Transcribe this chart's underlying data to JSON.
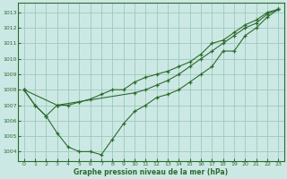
{
  "title": "Graphe pression niveau de la mer (hPa)",
  "background_color": "#cce8e4",
  "grid_color": "#99ccbb",
  "line_color": "#2d6b2d",
  "xlim": [
    -0.5,
    23.5
  ],
  "ylim": [
    1003.4,
    1013.6
  ],
  "yticks": [
    1004,
    1005,
    1006,
    1007,
    1008,
    1009,
    1010,
    1011,
    1012,
    1013
  ],
  "xticks": [
    0,
    1,
    2,
    3,
    4,
    5,
    6,
    7,
    8,
    9,
    10,
    11,
    12,
    13,
    14,
    15,
    16,
    17,
    18,
    19,
    20,
    21,
    22,
    23
  ],
  "series1_x": [
    0,
    1,
    2,
    3,
    4,
    5,
    6,
    7,
    8,
    9,
    10,
    11,
    12,
    13,
    14,
    15,
    16,
    17,
    18,
    19,
    20,
    21,
    22,
    23
  ],
  "series1_y": [
    1008.0,
    1007.0,
    1006.3,
    1005.2,
    1004.3,
    1004.0,
    1004.0,
    1003.8,
    1004.8,
    1005.8,
    1006.6,
    1007.0,
    1007.5,
    1007.7,
    1008.0,
    1008.5,
    1009.0,
    1009.5,
    1010.5,
    1010.5,
    1011.5,
    1012.0,
    1012.7,
    1013.2
  ],
  "series2_x": [
    0,
    3,
    10,
    11,
    12,
    13,
    14,
    15,
    16,
    17,
    18,
    19,
    20,
    21,
    22,
    23
  ],
  "series2_y": [
    1008.0,
    1007.0,
    1007.8,
    1008.0,
    1008.3,
    1008.6,
    1009.0,
    1009.5,
    1010.0,
    1010.5,
    1011.0,
    1011.5,
    1012.0,
    1012.3,
    1012.9,
    1013.2
  ],
  "series3_x": [
    0,
    1,
    2,
    3,
    4,
    5,
    6,
    7,
    8,
    9,
    10,
    11,
    12,
    13,
    14,
    15,
    16,
    17,
    18,
    19,
    20,
    21,
    22,
    23
  ],
  "series3_y": [
    1008.0,
    1007.0,
    1006.3,
    1007.0,
    1007.0,
    1007.2,
    1007.4,
    1007.7,
    1008.0,
    1008.0,
    1008.5,
    1008.8,
    1009.0,
    1009.2,
    1009.5,
    1009.8,
    1010.3,
    1011.0,
    1011.2,
    1011.7,
    1012.2,
    1012.5,
    1013.0,
    1013.2
  ]
}
